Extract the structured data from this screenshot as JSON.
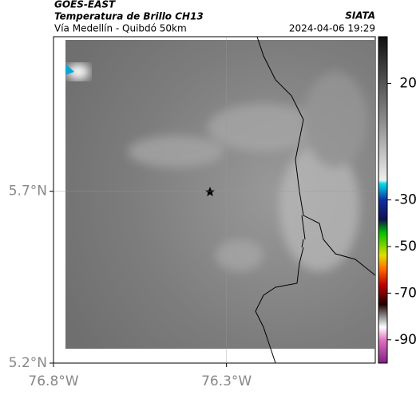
{
  "header": {
    "line1": "GOES-EAST",
    "line2": "Temperatura de Brillo CH13",
    "line3": "Vía Medellín - Quibdó 50km",
    "org": "SIATA",
    "datetime": "2024-04-06 19:29"
  },
  "map": {
    "xlim": [
      -76.8,
      -75.87
    ],
    "ylim": [
      5.2,
      6.15
    ],
    "xticks": [
      {
        "value": -76.8,
        "label": "76.8°W"
      },
      {
        "value": -76.3,
        "label": "76.3°W"
      }
    ],
    "yticks": [
      {
        "value": 5.2,
        "label": "5.2°N"
      },
      {
        "value": 5.7,
        "label": "5.7°N"
      }
    ],
    "grid": true
  },
  "colorbar": {
    "lim": [
      -100,
      40
    ],
    "ticks": [
      20,
      -30,
      -50,
      -70,
      -90
    ]
  }
}
